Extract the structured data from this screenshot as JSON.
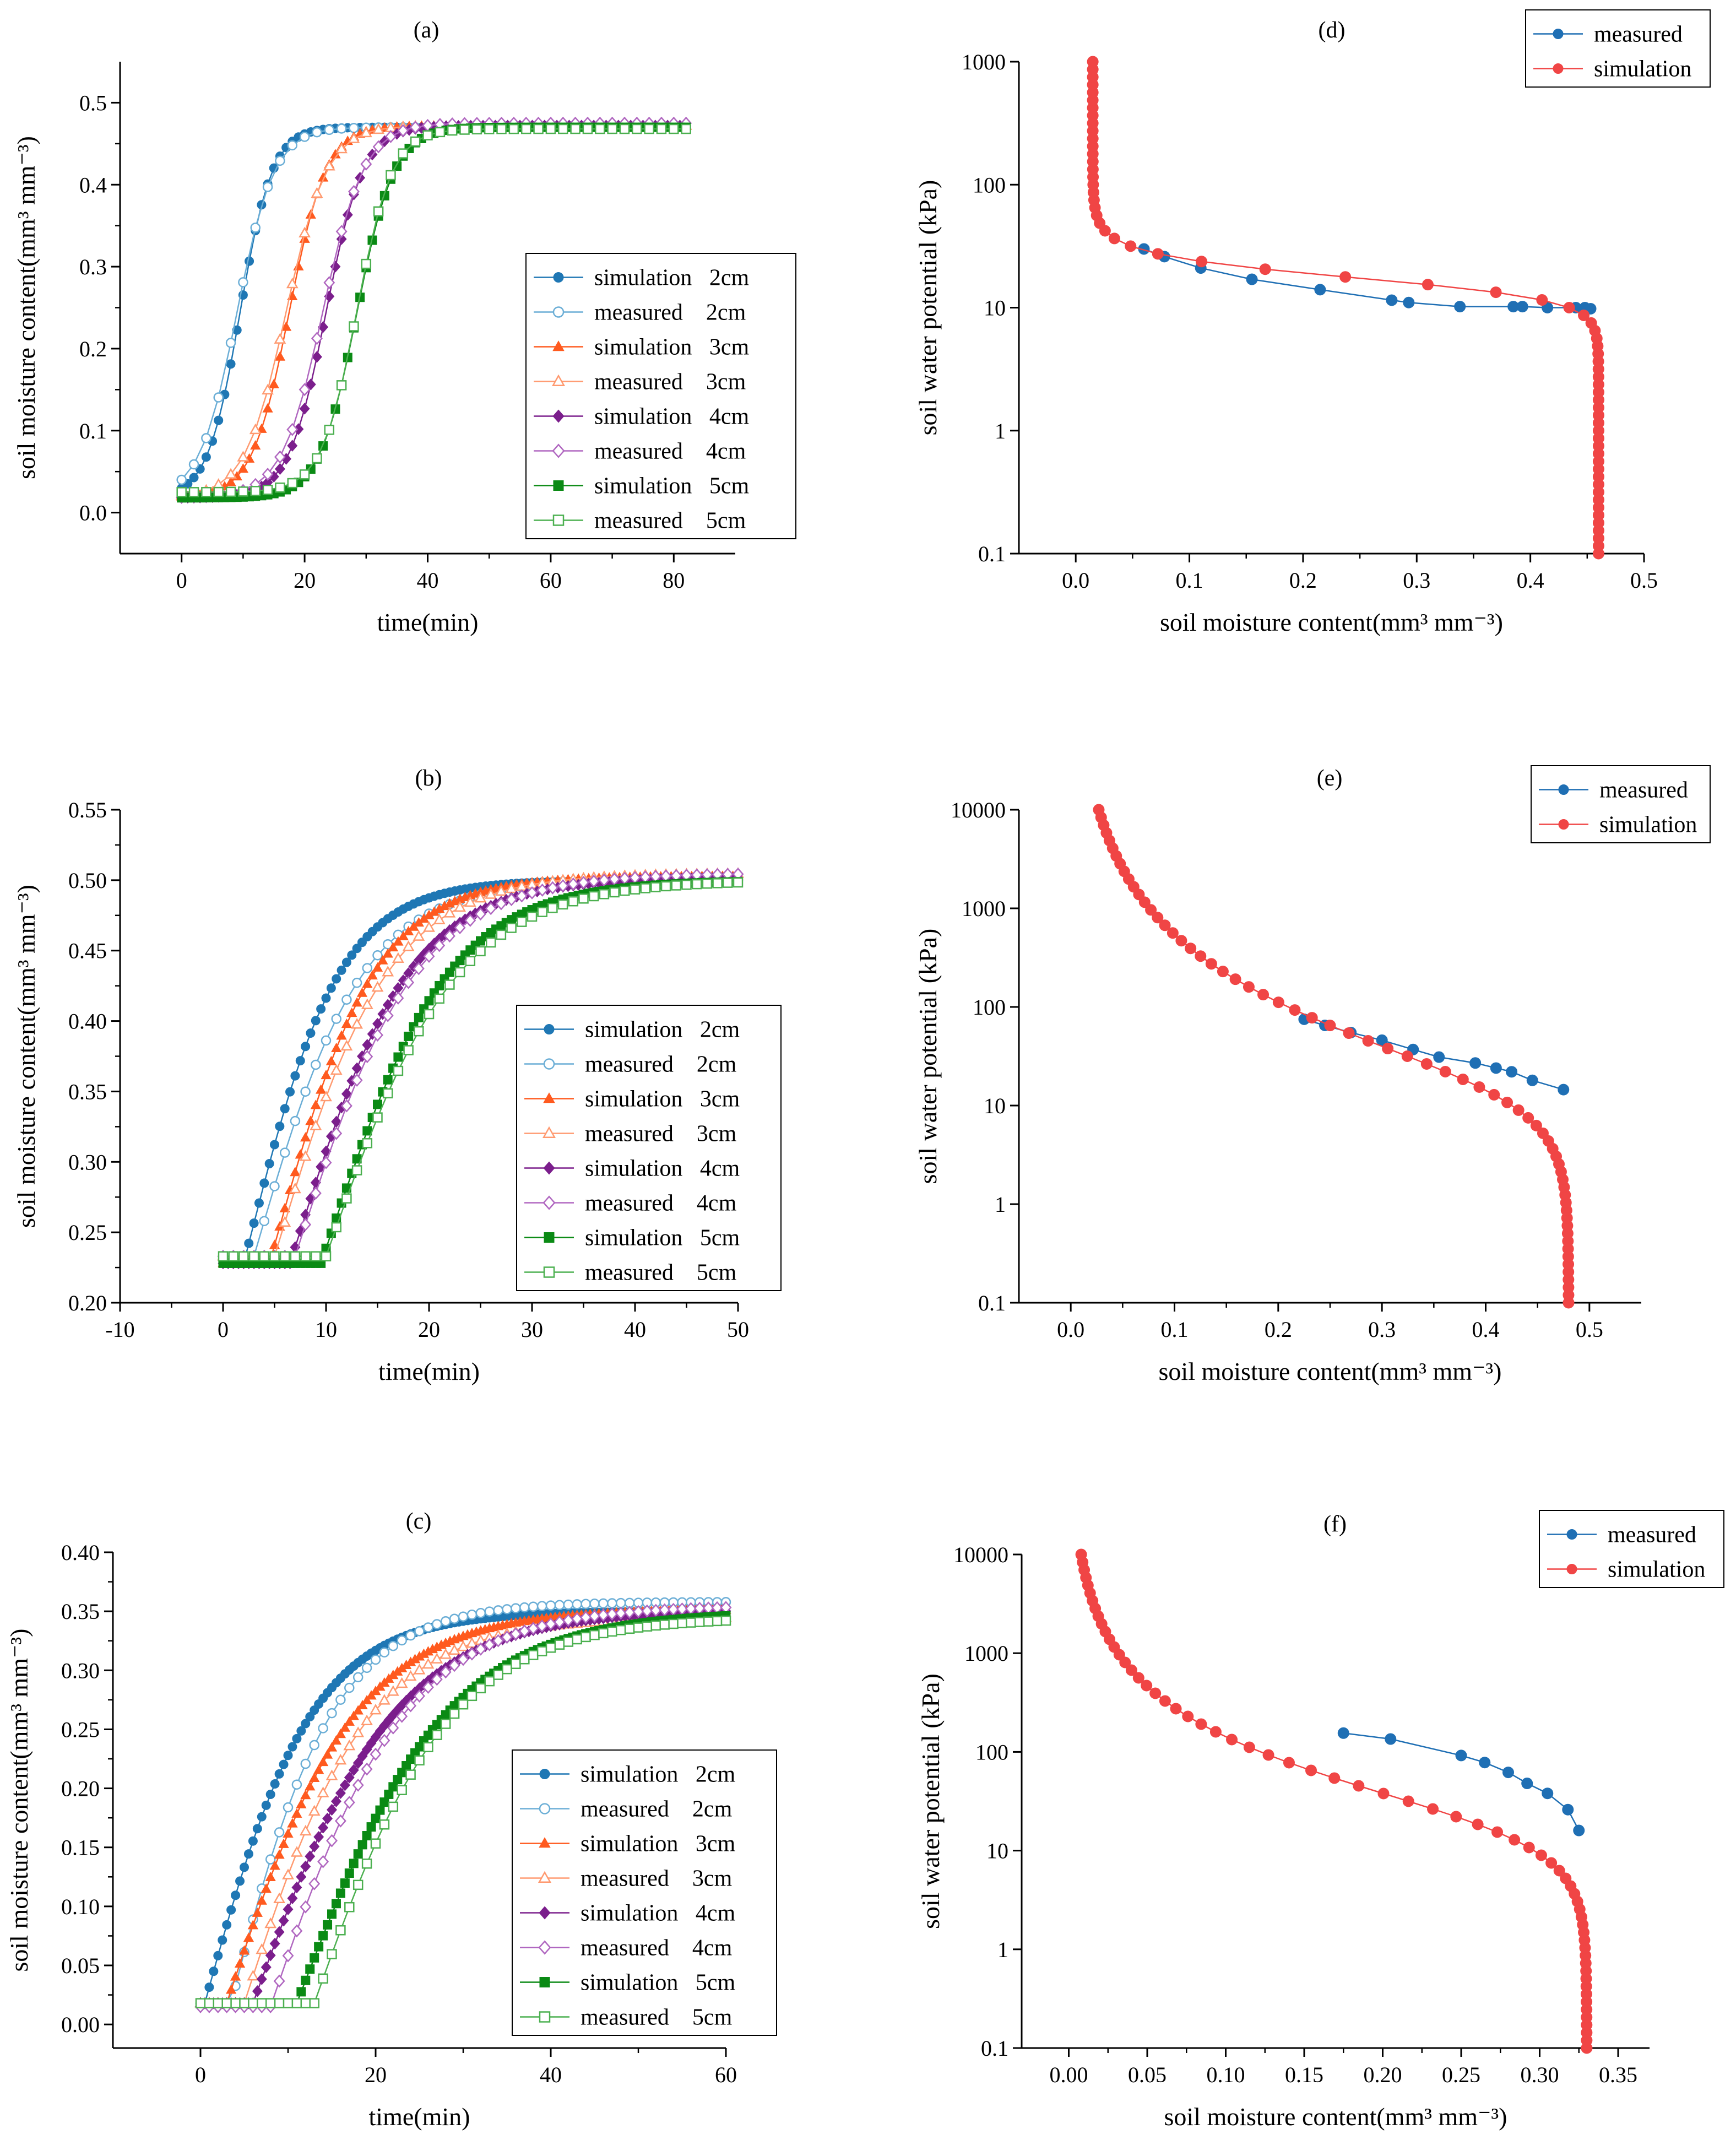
{
  "chart_data": [
    {
      "id": "a",
      "type": "line",
      "title": "(a)",
      "xlabel": "time(min)",
      "ylabel": "soil moisture content(mm³ mm⁻³)",
      "xlim": [
        -10,
        90
      ],
      "ylim": [
        -0.05,
        0.55
      ],
      "xticks": [
        0,
        20,
        40,
        60,
        80
      ],
      "xtick_labels": [
        "0",
        "20",
        "40",
        "60",
        "80"
      ],
      "yticks": [
        0,
        0.1,
        0.2,
        0.3,
        0.4,
        0.5
      ],
      "ytick_labels": [
        "0.0",
        "0.1",
        "0.2",
        "0.3",
        "0.4",
        "0.5"
      ],
      "legend_position": "right-middle",
      "series": [
        {
          "name": "simulation   2cm",
          "color": "#1f77b4",
          "marker": "circle-filled",
          "kind": "sigmoid",
          "y0": 0.018,
          "y1": 0.47,
          "x_mid": 9.5,
          "k": 0.38,
          "x_end": 82,
          "step": 1
        },
        {
          "name": "measured    2cm",
          "color": "#6baed6",
          "marker": "circle-open",
          "kind": "sigmoid",
          "y0": 0.018,
          "y1": 0.47,
          "x_mid": 9.0,
          "k": 0.33,
          "x_end": 82,
          "step": 2
        },
        {
          "name": "simulation   3cm",
          "color": "#ff5a1f",
          "marker": "triangle-filled",
          "kind": "sigmoid",
          "y0": 0.018,
          "y1": 0.472,
          "x_mid": 17.5,
          "k": 0.33,
          "x_end": 82,
          "step": 1
        },
        {
          "name": "measured    3cm",
          "color": "#ff9a70",
          "marker": "triangle-open",
          "kind": "sigmoid",
          "y0": 0.018,
          "y1": 0.472,
          "x_mid": 17.0,
          "k": 0.3,
          "x_end": 82,
          "step": 2
        },
        {
          "name": "simulation   4cm",
          "color": "#7b1e8c",
          "marker": "diamond-filled",
          "kind": "sigmoid",
          "y0": 0.018,
          "y1": 0.472,
          "x_mid": 23.5,
          "k": 0.33,
          "x_end": 82,
          "step": 1
        },
        {
          "name": "measured    4cm",
          "color": "#b067c0",
          "marker": "diamond-open",
          "kind": "sigmoid",
          "y0": 0.018,
          "y1": 0.475,
          "x_mid": 23.0,
          "k": 0.3,
          "x_end": 82,
          "step": 2
        },
        {
          "name": "simulation   5cm",
          "color": "#0a8a14",
          "marker": "square-filled",
          "kind": "sigmoid",
          "y0": 0.018,
          "y1": 0.47,
          "x_mid": 28.5,
          "k": 0.33,
          "x_end": 82,
          "step": 1
        },
        {
          "name": "measured    5cm",
          "color": "#4cb050",
          "marker": "square-open",
          "kind": "sigmoid",
          "y0": 0.025,
          "y1": 0.468,
          "x_mid": 28.5,
          "k": 0.35,
          "x_end": 82,
          "step": 2
        }
      ]
    },
    {
      "id": "b",
      "type": "line",
      "title": "(b)",
      "xlabel": "time(min)",
      "ylabel": "soil moisture content(mm³ mm⁻³)",
      "xlim": [
        -10,
        50
      ],
      "ylim": [
        0.2,
        0.55
      ],
      "xticks": [
        -10,
        0,
        10,
        20,
        30,
        40,
        50
      ],
      "xtick_labels": [
        "-10",
        "0",
        "10",
        "20",
        "30",
        "40",
        "50"
      ],
      "yticks": [
        0.2,
        0.25,
        0.3,
        0.35,
        0.4,
        0.45,
        0.5,
        0.55
      ],
      "ytick_labels": [
        "0.20",
        "0.25",
        "0.30",
        "0.35",
        "0.40",
        "0.45",
        "0.50",
        "0.55"
      ],
      "legend_position": "right-bottom",
      "series": [
        {
          "name": "simulation   2cm",
          "color": "#1f77b4",
          "marker": "circle-filled",
          "kind": "gompertz",
          "y0": 0.228,
          "y1": 0.5,
          "x0": 2.0,
          "b": 1.2,
          "c": 0.2,
          "x_end": 50,
          "step": 0.5
        },
        {
          "name": "measured    2cm",
          "color": "#6baed6",
          "marker": "circle-open",
          "kind": "gompertz",
          "y0": 0.233,
          "y1": 0.5,
          "x0": 3.0,
          "b": 1.1,
          "c": 0.17,
          "x_end": 50,
          "step": 1
        },
        {
          "name": "simulation   3cm",
          "color": "#ff5a1f",
          "marker": "triangle-filled",
          "kind": "gompertz",
          "y0": 0.228,
          "y1": 0.503,
          "x0": 4.5,
          "b": 1.2,
          "c": 0.18,
          "x_end": 50,
          "step": 0.5
        },
        {
          "name": "measured    3cm",
          "color": "#ff9a70",
          "marker": "triangle-open",
          "kind": "gompertz",
          "y0": 0.233,
          "y1": 0.505,
          "x0": 5.0,
          "b": 1.1,
          "c": 0.16,
          "x_end": 50,
          "step": 1
        },
        {
          "name": "simulation   4cm",
          "color": "#7b1e8c",
          "marker": "diamond-filled",
          "kind": "gompertz",
          "y0": 0.228,
          "y1": 0.502,
          "x0": 6.5,
          "b": 1.2,
          "c": 0.16,
          "x_end": 50,
          "step": 0.5
        },
        {
          "name": "measured    4cm",
          "color": "#b067c0",
          "marker": "diamond-open",
          "kind": "gompertz",
          "y0": 0.233,
          "y1": 0.505,
          "x0": 7.0,
          "b": 1.1,
          "c": 0.15,
          "x_end": 50,
          "step": 1
        },
        {
          "name": "simulation   5cm",
          "color": "#0a8a14",
          "marker": "square-filled",
          "kind": "gompertz",
          "y0": 0.228,
          "y1": 0.5,
          "x0": 9.5,
          "b": 1.2,
          "c": 0.15,
          "x_end": 50,
          "step": 0.5
        },
        {
          "name": "measured    5cm",
          "color": "#4cb050",
          "marker": "square-open",
          "kind": "gompertz",
          "y0": 0.233,
          "y1": 0.5,
          "x0": 10.0,
          "b": 1.1,
          "c": 0.14,
          "x_end": 50,
          "step": 1
        }
      ]
    },
    {
      "id": "c",
      "type": "line",
      "title": "(c)",
      "xlabel": "time(min)",
      "ylabel": "soil moisture content(mm³ mm⁻³)",
      "xlim": [
        -10,
        60
      ],
      "ylim": [
        -0.02,
        0.4
      ],
      "xticks": [
        0,
        20,
        40,
        60
      ],
      "xtick_labels": [
        "0",
        "20",
        "40",
        "60"
      ],
      "yticks": [
        0,
        0.05,
        0.1,
        0.15,
        0.2,
        0.25,
        0.3,
        0.35,
        0.4
      ],
      "ytick_labels": [
        "0.00",
        "0.05",
        "0.10",
        "0.15",
        "0.20",
        "0.25",
        "0.30",
        "0.35",
        "0.40"
      ],
      "legend_position": "right-bottom",
      "series": [
        {
          "name": "simulation   2cm",
          "color": "#1f77b4",
          "marker": "circle-filled",
          "kind": "gompertz",
          "y0": 0.018,
          "y1": 0.35,
          "x0": 0.5,
          "b": 1.0,
          "c": 0.14,
          "x_end": 60,
          "step": 0.5
        },
        {
          "name": "measured    2cm",
          "color": "#6baed6",
          "marker": "circle-open",
          "kind": "gompertz",
          "y0": 0.018,
          "y1": 0.358,
          "x0": 3.5,
          "b": 0.9,
          "c": 0.14,
          "x_end": 60,
          "step": 1
        },
        {
          "name": "simulation   3cm",
          "color": "#ff5a1f",
          "marker": "triangle-filled",
          "kind": "gompertz",
          "y0": 0.018,
          "y1": 0.352,
          "x0": 3.0,
          "b": 1.0,
          "c": 0.115,
          "x_end": 60,
          "step": 0.5
        },
        {
          "name": "measured    3cm",
          "color": "#ff9a70",
          "marker": "triangle-open",
          "kind": "gompertz",
          "y0": 0.018,
          "y1": 0.345,
          "x0": 5.0,
          "b": 1.0,
          "c": 0.12,
          "x_end": 60,
          "step": 1
        },
        {
          "name": "simulation   4cm",
          "color": "#7b1e8c",
          "marker": "diamond-filled",
          "kind": "gompertz",
          "y0": 0.018,
          "y1": 0.352,
          "x0": 6.0,
          "b": 1.0,
          "c": 0.105,
          "x_end": 60,
          "step": 0.5
        },
        {
          "name": "measured    4cm",
          "color": "#b067c0",
          "marker": "diamond-open",
          "kind": "gompertz",
          "y0": 0.015,
          "y1": 0.355,
          "x0": 8.0,
          "b": 1.0,
          "c": 0.11,
          "x_end": 60,
          "step": 1
        },
        {
          "name": "simulation   5cm",
          "color": "#0a8a14",
          "marker": "square-filled",
          "kind": "gompertz",
          "y0": 0.018,
          "y1": 0.35,
          "x0": 11.0,
          "b": 1.0,
          "c": 0.1,
          "x_end": 60,
          "step": 0.5
        },
        {
          "name": "measured    5cm",
          "color": "#4cb050",
          "marker": "square-open",
          "kind": "gompertz",
          "y0": 0.018,
          "y1": 0.345,
          "x0": 13.0,
          "b": 1.0,
          "c": 0.11,
          "x_end": 60,
          "step": 1
        }
      ]
    },
    {
      "id": "d",
      "type": "line",
      "title": "(d)",
      "yscale": "log",
      "xlabel": "soil moisture content(mm³ mm⁻³)",
      "ylabel": "soil water potential (kPa)",
      "xlim": [
        -0.05,
        0.5
      ],
      "ylim": [
        0.1,
        1000
      ],
      "xticks": [
        0,
        0.1,
        0.2,
        0.3,
        0.4,
        0.5
      ],
      "xtick_labels": [
        "0.0",
        "0.1",
        "0.2",
        "0.3",
        "0.4",
        "0.5"
      ],
      "yticks": [
        0.1,
        1,
        10,
        100,
        1000
      ],
      "ytick_labels": [
        "0.1",
        "1",
        "10",
        "100",
        "1000"
      ],
      "legend_position": "top-right",
      "series": [
        {
          "name": "measured",
          "color": "#1f6fb4",
          "marker": "circle-filled",
          "kind": "points",
          "x": [
            0.06,
            0.078,
            0.11,
            0.155,
            0.215,
            0.278,
            0.293,
            0.338,
            0.385,
            0.393,
            0.415,
            0.44,
            0.448,
            0.453
          ],
          "y": [
            30,
            26,
            21,
            17,
            14,
            11.5,
            11,
            10.2,
            10.2,
            10.2,
            10,
            10,
            10,
            9.8
          ]
        },
        {
          "name": "simulation",
          "color": "#f04545",
          "marker": "circle-filled",
          "kind": "vg",
          "theta_r": 0.015,
          "theta_s": 0.46,
          "alpha": 0.06,
          "n": 5.0,
          "y_min": 0.1,
          "y_max": 1000
        }
      ]
    },
    {
      "id": "e",
      "type": "line",
      "title": "(e)",
      "yscale": "log",
      "xlabel": "soil moisture content(mm³ mm⁻³)",
      "ylabel": "soil water potential (kPa)",
      "xlim": [
        -0.05,
        0.55
      ],
      "ylim": [
        0.1,
        10000
      ],
      "xticks": [
        0,
        0.1,
        0.2,
        0.3,
        0.4,
        0.5
      ],
      "xtick_labels": [
        "0.0",
        "0.1",
        "0.2",
        "0.3",
        "0.4",
        "0.5"
      ],
      "yticks": [
        0.1,
        1,
        10,
        100,
        1000,
        10000
      ],
      "ytick_labels": [
        "0.1",
        "1",
        "10",
        "100",
        "1000",
        "10000"
      ],
      "legend_position": "top-right",
      "series": [
        {
          "name": "measured",
          "color": "#1f6fb4",
          "marker": "circle-filled",
          "kind": "points",
          "x": [
            0.225,
            0.245,
            0.27,
            0.3,
            0.33,
            0.355,
            0.39,
            0.41,
            0.425,
            0.445,
            0.475
          ],
          "y": [
            75,
            65,
            55,
            46,
            37,
            31,
            27,
            24,
            22,
            18,
            14.5
          ]
        },
        {
          "name": "simulation",
          "color": "#f04545",
          "marker": "circle-filled",
          "kind": "vg",
          "theta_r": 0.0,
          "theta_s": 0.48,
          "alpha": 0.06,
          "n": 1.45,
          "y_min": 0.1,
          "y_max": 10000
        }
      ]
    },
    {
      "id": "f",
      "type": "line",
      "title": "(f)",
      "yscale": "log",
      "xlabel": "soil moisture content(mm³ mm⁻³)",
      "ylabel": "soil water potential (kPa)",
      "xlim": [
        -0.03,
        0.37
      ],
      "ylim": [
        0.1,
        10000
      ],
      "xticks": [
        0,
        0.05,
        0.1,
        0.15,
        0.2,
        0.25,
        0.3,
        0.35
      ],
      "xtick_labels": [
        "0.00",
        "0.05",
        "0.10",
        "0.15",
        "0.20",
        "0.25",
        "0.30",
        "0.35"
      ],
      "yticks": [
        0.1,
        1,
        10,
        100,
        1000,
        10000
      ],
      "ytick_labels": [
        "0.1",
        "1",
        "10",
        "100",
        "1000",
        "10000"
      ],
      "legend_position": "top-right",
      "series": [
        {
          "name": "measured",
          "color": "#1f6fb4",
          "marker": "circle-filled",
          "kind": "points",
          "x": [
            0.175,
            0.205,
            0.25,
            0.265,
            0.28,
            0.292,
            0.305,
            0.318,
            0.325
          ],
          "y": [
            155,
            135,
            92,
            78,
            62,
            48,
            38,
            26,
            16
          ]
        },
        {
          "name": "simulation",
          "color": "#f04545",
          "marker": "circle-filled",
          "kind": "vg",
          "theta_r": 0.0,
          "theta_s": 0.33,
          "alpha": 0.05,
          "n": 1.6,
          "y_min": 0.1,
          "y_max": 10000
        }
      ]
    }
  ]
}
